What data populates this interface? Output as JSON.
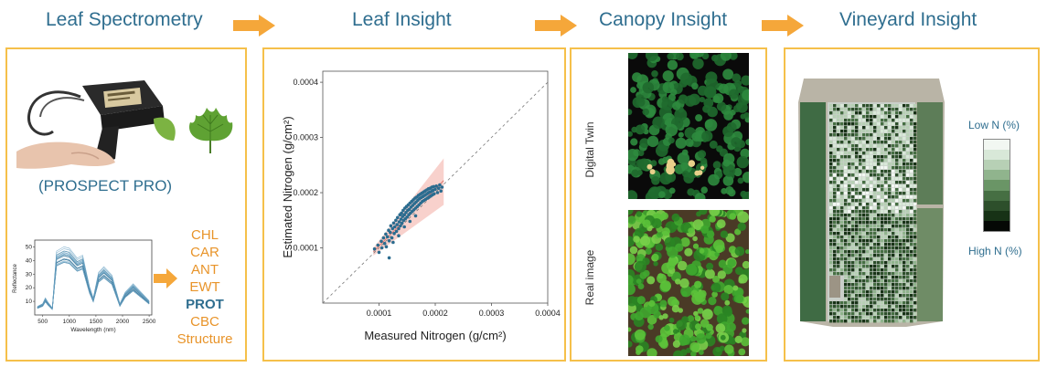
{
  "titles": {
    "leaf_spectrometry": "Leaf Spectrometry",
    "leaf_insight": "Leaf Insight",
    "canopy_insight": "Canopy Insight",
    "vineyard_insight": "Vineyard Insight"
  },
  "leaf_spectrometry": {
    "model_label": "(PROSPECT PRO)",
    "spectra_chart": {
      "ylabel": "Reflectance",
      "xlabel": "Wavelength (nm)",
      "x_ticks": [
        "500",
        "1000",
        "1500",
        "2000",
        "2500"
      ],
      "y_ticks": [
        "10",
        "20",
        "30",
        "40",
        "50"
      ]
    },
    "properties": [
      {
        "label": "CHL",
        "highlight": false
      },
      {
        "label": "CAR",
        "highlight": false
      },
      {
        "label": "ANT",
        "highlight": false
      },
      {
        "label": "EWT",
        "highlight": false
      },
      {
        "label": "PROT",
        "highlight": true
      },
      {
        "label": "CBC",
        "highlight": false
      },
      {
        "label": "Structure",
        "highlight": false
      }
    ]
  },
  "chart_data": {
    "type": "scatter",
    "xlabel": "Measured Nitrogen (g/cm²)",
    "ylabel": "Estimated Nitrogen (g/cm²)",
    "xlim": [
      0,
      0.0004
    ],
    "ylim": [
      0,
      0.00042
    ],
    "x_ticks": [
      "0.0001",
      "0.0002",
      "0.0003",
      "0.0004"
    ],
    "y_ticks": [
      "0.0001",
      "0.0002",
      "0.0003",
      "0.0004"
    ],
    "reference_line": "1:1 dashed",
    "confidence_band": true,
    "point_color": "#2b6c8f",
    "band_color": "#f4b8b0",
    "points": [
      [
        9.2e-05,
        9.8e-05
      ],
      [
        9.8e-05,
        0.000105
      ],
      [
        0.0001,
        9.2e-05
      ],
      [
        0.000104,
        0.000112
      ],
      [
        0.000105,
        0.0001
      ],
      [
        0.000108,
        0.000118
      ],
      [
        0.00011,
        0.000108
      ],
      [
        0.000112,
        0.000125
      ],
      [
        0.000113,
        0.000102
      ],
      [
        0.000115,
        0.00012
      ],
      [
        0.000117,
        0.000132
      ],
      [
        0.000118,
        0.000113
      ],
      [
        0.00012,
        0.000128
      ],
      [
        0.000121,
        0.00014
      ],
      [
        0.000123,
        0.000118
      ],
      [
        0.000124,
        0.000135
      ],
      [
        0.000126,
        0.000145
      ],
      [
        0.000127,
        0.000126
      ],
      [
        0.000128,
        0.000138
      ],
      [
        0.00013,
        0.00015
      ],
      [
        0.000131,
        0.00013
      ],
      [
        0.000132,
        0.000142
      ],
      [
        0.000133,
        0.000155
      ],
      [
        0.000135,
        0.000135
      ],
      [
        0.000136,
        0.000147
      ],
      [
        0.000137,
        0.00016
      ],
      [
        0.000138,
        0.00014
      ],
      [
        0.000139,
        0.000152
      ],
      [
        0.00014,
        0.000163
      ],
      [
        0.000141,
        0.000145
      ],
      [
        0.000142,
        0.000157
      ],
      [
        0.000143,
        0.000168
      ],
      [
        0.000144,
        0.00015
      ],
      [
        0.000145,
        0.00016
      ],
      [
        0.000146,
        0.000172
      ],
      [
        0.000147,
        0.000153
      ],
      [
        0.000148,
        0.000164
      ],
      [
        0.000149,
        0.000175
      ],
      [
        0.00015,
        0.000156
      ],
      [
        0.000151,
        0.000168
      ],
      [
        0.000152,
        0.000178
      ],
      [
        0.000153,
        0.00016
      ],
      [
        0.000154,
        0.00017
      ],
      [
        0.000155,
        0.000181
      ],
      [
        0.000156,
        0.000163
      ],
      [
        0.000157,
        0.000174
      ],
      [
        0.000158,
        0.000184
      ],
      [
        0.000159,
        0.000166
      ],
      [
        0.00016,
        0.000177
      ],
      [
        0.000161,
        0.000187
      ],
      [
        0.000162,
        0.000169
      ],
      [
        0.000163,
        0.00018
      ],
      [
        0.000164,
        0.00019
      ],
      [
        0.000165,
        0.000172
      ],
      [
        0.000166,
        0.000183
      ],
      [
        0.000167,
        0.000192
      ],
      [
        0.000168,
        0.000175
      ],
      [
        0.000169,
        0.000186
      ],
      [
        0.00017,
        0.000195
      ],
      [
        0.000171,
        0.000178
      ],
      [
        0.000172,
        0.000189
      ],
      [
        0.000173,
        0.000197
      ],
      [
        0.000174,
        0.000181
      ],
      [
        0.000175,
        0.000191
      ],
      [
        0.000176,
        0.000199
      ],
      [
        0.000177,
        0.000184
      ],
      [
        0.000178,
        0.000193
      ],
      [
        0.000179,
        0.000201
      ],
      [
        0.00018,
        0.000186
      ],
      [
        0.000181,
        0.000195
      ],
      [
        0.000182,
        0.000203
      ],
      [
        0.000183,
        0.000188
      ],
      [
        0.000184,
        0.000197
      ],
      [
        0.000185,
        0.000205
      ],
      [
        0.000186,
        0.00019
      ],
      [
        0.000187,
        0.000199
      ],
      [
        0.000188,
        0.000207
      ],
      [
        0.000189,
        0.000192
      ],
      [
        0.00019,
        0.000201
      ],
      [
        0.000191,
        0.000208
      ],
      [
        0.000192,
        0.000194
      ],
      [
        0.000193,
        0.000202
      ],
      [
        0.000194,
        0.00021
      ],
      [
        0.000195,
        0.000196
      ],
      [
        0.000196,
        0.000204
      ],
      [
        0.000197,
        0.000211
      ],
      [
        0.000198,
        0.000198
      ],
      [
        0.0002,
        0.000206
      ],
      [
        0.000202,
        0.000212
      ],
      [
        0.000204,
        0.0002
      ],
      [
        0.000206,
        0.000208
      ],
      [
        0.000208,
        0.000214
      ],
      [
        0.00021,
        0.000203
      ],
      [
        0.000212,
        0.00021
      ],
      [
        0.000118,
        8.2e-05
      ],
      [
        0.000135,
        0.000122
      ],
      [
        0.000145,
        0.000138
      ],
      [
        0.000155,
        0.000148
      ],
      [
        0.000165,
        0.000158
      ],
      [
        0.000125,
        0.00011
      ]
    ]
  },
  "canopy_insight": {
    "digital_twin_label": "Digital Twin",
    "real_image_label": "Real image"
  },
  "vineyard_insight": {
    "legend_top": "Low N (%)",
    "legend_bottom": "High N (%)",
    "legend_colors": [
      "#f2f7f2",
      "#d8e8d8",
      "#b7d0b5",
      "#90b48d",
      "#6a9566",
      "#466f43",
      "#2d4f2b",
      "#173216",
      "#050805"
    ]
  },
  "colors": {
    "title": "#2f6e8f",
    "panel_border": "#f5c04a",
    "arrow": "#f5a73a",
    "property": "#e8942a",
    "property_highlight": "#2f6e8f"
  }
}
